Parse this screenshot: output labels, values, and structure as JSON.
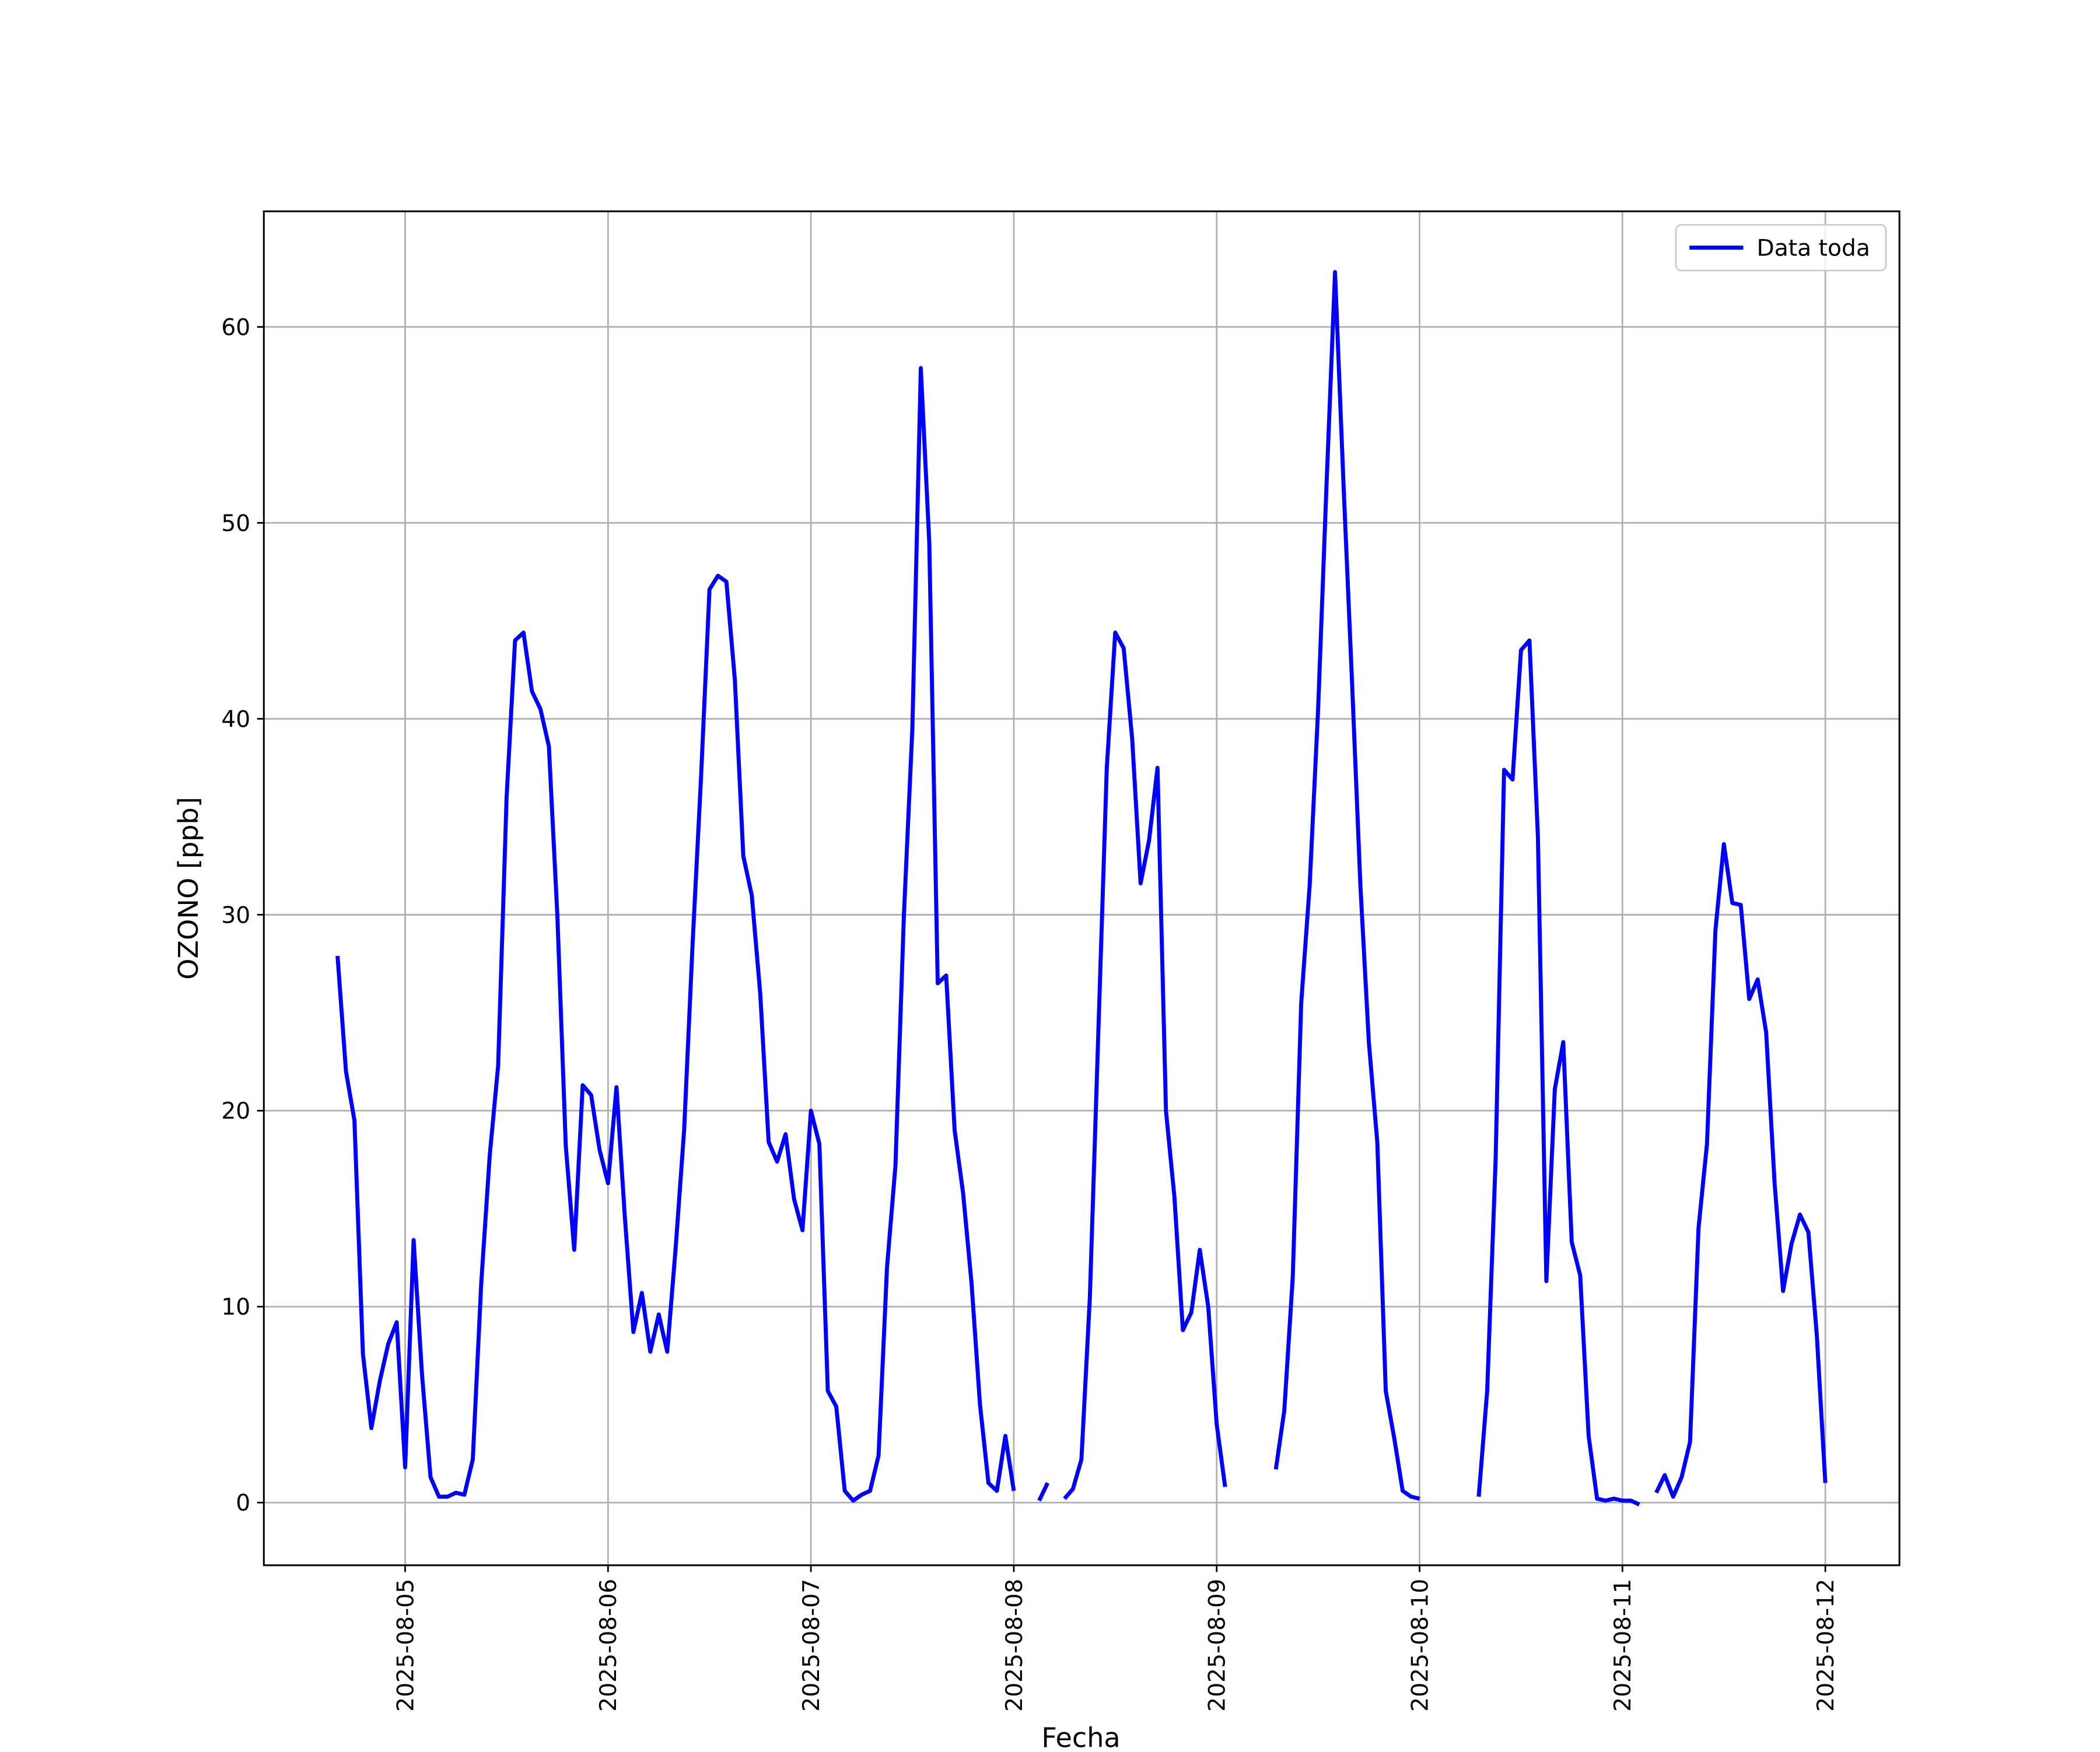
{
  "chart_data": {
    "type": "line",
    "ylabel": "OZONO [ppb]",
    "xlabel": "Fecha",
    "x": [
      "2025-08-04 16:00",
      "2025-08-04 17:00",
      "2025-08-04 18:00",
      "2025-08-04 19:00",
      "2025-08-04 20:00",
      "2025-08-04 21:00",
      "2025-08-04 22:00",
      "2025-08-04 23:00",
      "2025-08-05 00:00",
      "2025-08-05 01:00",
      "2025-08-05 02:00",
      "2025-08-05 03:00",
      "2025-08-05 04:00",
      "2025-08-05 05:00",
      "2025-08-05 06:00",
      "2025-08-05 07:00",
      "2025-08-05 08:00",
      "2025-08-05 09:00",
      "2025-08-05 10:00",
      "2025-08-05 11:00",
      "2025-08-05 12:00",
      "2025-08-05 13:00",
      "2025-08-05 14:00",
      "2025-08-05 15:00",
      "2025-08-05 16:00",
      "2025-08-05 17:00",
      "2025-08-05 18:00",
      "2025-08-05 19:00",
      "2025-08-05 20:00",
      "2025-08-05 21:00",
      "2025-08-05 22:00",
      "2025-08-05 23:00",
      "2025-08-06 00:00",
      "2025-08-06 01:00",
      "2025-08-06 02:00",
      "2025-08-06 03:00",
      "2025-08-06 04:00",
      "2025-08-06 05:00",
      "2025-08-06 06:00",
      "2025-08-06 07:00",
      "2025-08-06 08:00",
      "2025-08-06 09:00",
      "2025-08-06 10:00",
      "2025-08-06 11:00",
      "2025-08-06 12:00",
      "2025-08-06 13:00",
      "2025-08-06 14:00",
      "2025-08-06 15:00",
      "2025-08-06 16:00",
      "2025-08-06 17:00",
      "2025-08-06 18:00",
      "2025-08-06 19:00",
      "2025-08-06 20:00",
      "2025-08-06 21:00",
      "2025-08-06 22:00",
      "2025-08-06 23:00",
      "2025-08-07 00:00",
      "2025-08-07 01:00",
      "2025-08-07 02:00",
      "2025-08-07 03:00",
      "2025-08-07 04:00",
      "2025-08-07 05:00",
      "2025-08-07 06:00",
      "2025-08-07 07:00",
      "2025-08-07 08:00",
      "2025-08-07 09:00",
      "2025-08-07 10:00",
      "2025-08-07 11:00",
      "2025-08-07 12:00",
      "2025-08-07 13:00",
      "2025-08-07 14:00",
      "2025-08-07 15:00",
      "2025-08-07 16:00",
      "2025-08-07 17:00",
      "2025-08-07 18:00",
      "2025-08-07 19:00",
      "2025-08-07 20:00",
      "2025-08-07 21:00",
      "2025-08-07 22:00",
      "2025-08-07 23:00",
      "2025-08-08 00:00",
      "2025-08-08 01:00",
      "2025-08-08 02:00",
      "2025-08-08 03:00",
      "2025-08-08 04:00",
      "2025-08-08 05:00",
      "2025-08-08 06:00",
      "2025-08-08 07:00",
      "2025-08-08 08:00",
      "2025-08-08 09:00",
      "2025-08-08 10:00",
      "2025-08-08 11:00",
      "2025-08-08 12:00",
      "2025-08-08 13:00",
      "2025-08-08 14:00",
      "2025-08-08 15:00",
      "2025-08-08 16:00",
      "2025-08-08 17:00",
      "2025-08-08 18:00",
      "2025-08-08 19:00",
      "2025-08-08 20:00",
      "2025-08-08 21:00",
      "2025-08-08 22:00",
      "2025-08-08 23:00",
      "2025-08-09 00:00",
      "2025-08-09 01:00",
      "2025-08-09 02:00",
      "2025-08-09 03:00",
      "2025-08-09 04:00",
      "2025-08-09 05:00",
      "2025-08-09 06:00",
      "2025-08-09 07:00",
      "2025-08-09 08:00",
      "2025-08-09 09:00",
      "2025-08-09 10:00",
      "2025-08-09 11:00",
      "2025-08-09 12:00",
      "2025-08-09 13:00",
      "2025-08-09 14:00",
      "2025-08-09 15:00",
      "2025-08-09 16:00",
      "2025-08-09 17:00",
      "2025-08-09 18:00",
      "2025-08-09 19:00",
      "2025-08-09 20:00",
      "2025-08-09 21:00",
      "2025-08-09 22:00",
      "2025-08-09 23:00",
      "2025-08-10 00:00",
      "2025-08-10 01:00",
      "2025-08-10 02:00",
      "2025-08-10 03:00",
      "2025-08-10 04:00",
      "2025-08-10 05:00",
      "2025-08-10 06:00",
      "2025-08-10 07:00",
      "2025-08-10 08:00",
      "2025-08-10 09:00",
      "2025-08-10 10:00",
      "2025-08-10 11:00",
      "2025-08-10 12:00",
      "2025-08-10 13:00",
      "2025-08-10 14:00",
      "2025-08-10 15:00",
      "2025-08-10 16:00",
      "2025-08-10 17:00",
      "2025-08-10 18:00",
      "2025-08-10 19:00",
      "2025-08-10 20:00",
      "2025-08-10 21:00",
      "2025-08-10 22:00",
      "2025-08-10 23:00",
      "2025-08-11 00:00",
      "2025-08-11 01:00",
      "2025-08-11 02:00",
      "2025-08-11 03:00",
      "2025-08-11 04:00",
      "2025-08-11 05:00",
      "2025-08-11 06:00",
      "2025-08-11 07:00",
      "2025-08-11 08:00",
      "2025-08-11 09:00",
      "2025-08-11 10:00",
      "2025-08-11 11:00",
      "2025-08-11 12:00",
      "2025-08-11 13:00",
      "2025-08-11 14:00",
      "2025-08-11 15:00",
      "2025-08-11 16:00",
      "2025-08-11 17:00",
      "2025-08-11 18:00",
      "2025-08-11 19:00",
      "2025-08-11 20:00",
      "2025-08-11 21:00",
      "2025-08-11 22:00",
      "2025-08-11 23:00",
      "2025-08-12 00:00"
    ],
    "series": [
      {
        "name": "Data toda",
        "color": "#0000ff",
        "values": [
          27.9,
          22,
          19.5,
          7.6,
          3.8,
          6.2,
          8.1,
          9.2,
          1.8,
          13.4,
          6.5,
          1.3,
          0.3,
          0.3,
          0.5,
          0.4,
          2.2,
          11.2,
          17.7,
          22.3,
          36,
          44,
          44.4,
          41.4,
          40.5,
          38.6,
          30,
          18.2,
          12.9,
          21.3,
          20.8,
          18,
          16.3,
          21.2,
          14.5,
          8.7,
          10.7,
          7.7,
          9.6,
          7.7,
          13,
          19,
          28.5,
          37,
          46.6,
          47.3,
          47,
          42,
          33,
          31,
          26,
          18.4,
          17.4,
          18.8,
          15.5,
          13.9,
          20,
          18.3,
          5.7,
          4.9,
          0.6,
          0.1,
          0.4,
          0.6,
          2.4,
          12,
          17.2,
          30,
          39.5,
          57.9,
          49,
          26.5,
          26.9,
          19,
          15.8,
          11.2,
          5,
          1,
          0.6,
          3.4,
          0.6,
          null,
          null,
          0.1,
          1,
          null,
          0.2,
          0.7,
          2.2,
          10.5,
          24,
          37.5,
          44.4,
          43.6,
          39,
          31.6,
          33.8,
          37.5,
          20,
          15.6,
          8.8,
          9.7,
          12.9,
          10,
          4,
          0.8,
          null,
          null,
          null,
          null,
          null,
          1.7,
          4.7,
          11.5,
          25.5,
          31.5,
          40.5,
          52,
          62.8,
          52,
          42,
          31.5,
          23.5,
          18.4,
          5.7,
          3.3,
          0.6,
          0.3,
          0.2,
          null,
          null,
          null,
          null,
          null,
          null,
          0.3,
          5.7,
          17.5,
          37.4,
          36.9,
          43.5,
          44,
          34,
          11.3,
          21.1,
          23.5,
          13.3,
          11.6,
          3.4,
          0.2,
          0.1,
          0.2,
          0.1,
          0.1,
          -0.1,
          null,
          0.5,
          1.4,
          0.3,
          1.3,
          3.1,
          14,
          18.3,
          29.2,
          33.6,
          30.6,
          30.5,
          25.7,
          26.7,
          24,
          16.3,
          10.8,
          13.2,
          14.7,
          13.8,
          8.5,
          1
        ]
      }
    ],
    "xlim": [
      "2025-08-04 07:17",
      "2025-08-12 08:46"
    ],
    "xticks": [
      "2025-08-05",
      "2025-08-06",
      "2025-08-07",
      "2025-08-08",
      "2025-08-09",
      "2025-08-10",
      "2025-08-11",
      "2025-08-12"
    ],
    "ylim": [
      -3.2,
      65.9
    ],
    "yticks": [
      0,
      10,
      20,
      30,
      40,
      50,
      60
    ],
    "grid": true,
    "legend": "upper right"
  }
}
